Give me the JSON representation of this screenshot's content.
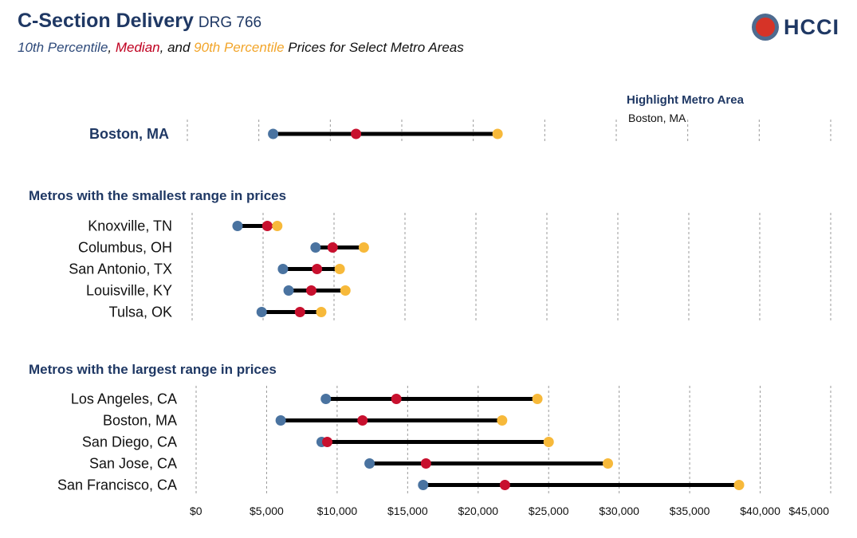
{
  "header": {
    "title": "C-Section Delivery",
    "drg": "DRG 766",
    "subtitle": {
      "p10": "10th Percentile",
      "sep1": ", ",
      "median": "Median",
      "sep2": ", and ",
      "p90": "90th Percentile",
      "rest": " Prices for Select Metro Areas"
    }
  },
  "logo": {
    "text": "HCCI"
  },
  "highlight": {
    "label": "Highlight Metro Area",
    "value": "Boston, MA"
  },
  "colors": {
    "p10": "#4a73a0",
    "median": "#c8102e",
    "p90": "#f7b93a",
    "bar": "#000000",
    "heading": "#1f3864",
    "grid": "#999999"
  },
  "chart_data": {
    "type": "dumbbell",
    "x_ticks": [
      "$0",
      "$5,000",
      "$10,000",
      "$15,000",
      "$20,000",
      "$25,000",
      "$30,000",
      "$35,000",
      "$40,000",
      "$45,000"
    ],
    "x_range": [
      0,
      45000
    ],
    "panels": [
      {
        "heading": "",
        "rows": [
          {
            "metro": "Boston, MA",
            "p10": 6000,
            "median": 11800,
            "p90": 21700,
            "bold": true
          }
        ]
      },
      {
        "heading": "Metros with the smallest range in prices",
        "rows": [
          {
            "metro": "Knoxville, TN",
            "p10": 3200,
            "median": 5300,
            "p90": 6000
          },
          {
            "metro": "Columbus, OH",
            "p10": 8700,
            "median": 9900,
            "p90": 12100
          },
          {
            "metro": "San Antonio, TX",
            "p10": 6400,
            "median": 8800,
            "p90": 10400
          },
          {
            "metro": "Louisville, KY",
            "p10": 6800,
            "median": 8400,
            "p90": 10800
          },
          {
            "metro": "Tulsa, OK",
            "p10": 4900,
            "median": 7600,
            "p90": 9100
          }
        ]
      },
      {
        "heading": "Metros with the largest range in prices",
        "rows": [
          {
            "metro": "Los Angeles, CA",
            "p10": 9200,
            "median": 14200,
            "p90": 24200
          },
          {
            "metro": "Boston, MA",
            "p10": 6000,
            "median": 11800,
            "p90": 21700
          },
          {
            "metro": "San Diego, CA",
            "p10": 8900,
            "median": 9300,
            "p90": 25000
          },
          {
            "metro": "San Jose, CA",
            "p10": 12300,
            "median": 16300,
            "p90": 29200
          },
          {
            "metro": "San Francisco, CA",
            "p10": 16100,
            "median": 21900,
            "p90": 38500
          }
        ]
      }
    ]
  }
}
